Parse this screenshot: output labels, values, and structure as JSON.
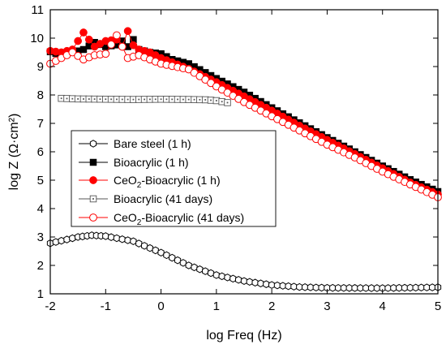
{
  "chart_data": {
    "type": "scatter",
    "xlabel": "log Freq (Hz)",
    "ylabel": "log Z (Ω·cm²)",
    "xlim": [
      -2,
      5
    ],
    "ylim": [
      1,
      11
    ],
    "xticks": [
      "-2",
      "-1",
      "0",
      "1",
      "2",
      "3",
      "4",
      "5"
    ],
    "yticks": [
      "1",
      "2",
      "3",
      "4",
      "5",
      "6",
      "7",
      "8",
      "9",
      "10",
      "11"
    ],
    "grid": false,
    "legend": "left-middle",
    "series": [
      {
        "name": "Bare steel (1 h)",
        "marker": "hexagon-open",
        "color": "#000000",
        "x": [
          -2.0,
          -1.5,
          -1.25,
          -1.0,
          -0.5,
          0.0,
          0.5,
          1.0,
          1.5,
          2.0,
          2.5,
          3.0,
          4.0,
          5.0
        ],
        "y": [
          2.78,
          3.0,
          3.06,
          3.03,
          2.85,
          2.45,
          2.0,
          1.66,
          1.45,
          1.31,
          1.24,
          1.21,
          1.2,
          1.23
        ]
      },
      {
        "name": "Bioacrylic (1 h)",
        "marker": "square-filled",
        "color": "#000000",
        "x": [
          -2.0,
          -1.8,
          -1.6,
          -1.4,
          -1.2,
          -1.0,
          -0.8,
          -0.7,
          -0.6,
          -0.5,
          -0.4,
          -0.2,
          0.0,
          0.2,
          0.5,
          1.0,
          1.5,
          2.0,
          2.5,
          3.0,
          3.5,
          4.0,
          4.5,
          5.0
        ],
        "y": [
          9.52,
          9.4,
          9.5,
          9.6,
          9.85,
          9.7,
          9.76,
          9.9,
          9.7,
          9.95,
          9.6,
          9.5,
          9.45,
          9.25,
          9.1,
          8.58,
          8.1,
          7.55,
          7.02,
          6.5,
          6.0,
          5.5,
          5.02,
          4.6
        ]
      },
      {
        "name": "CeO2-Bioacrylic (1 h)",
        "display_name": "CeO₂-Bioacrylic (1 h)",
        "marker": "circle-filled",
        "color": "#ff0000",
        "x": [
          -2.0,
          -1.8,
          -1.6,
          -1.4,
          -1.2,
          -1.0,
          -0.8,
          -0.7,
          -0.6,
          -0.5,
          -0.4,
          -0.2,
          0.0,
          0.2,
          0.5,
          1.0,
          1.5,
          2.0,
          2.5,
          3.0,
          3.5,
          4.0,
          4.5,
          5.0
        ],
        "y": [
          9.55,
          9.5,
          9.6,
          10.2,
          9.7,
          9.9,
          9.95,
          9.7,
          10.25,
          9.75,
          9.6,
          9.5,
          9.3,
          9.15,
          8.92,
          8.45,
          7.95,
          7.45,
          6.92,
          6.42,
          5.92,
          5.42,
          4.92,
          4.5
        ]
      },
      {
        "name": "Bioacrylic (41 days)",
        "marker": "square-dot",
        "color": "#555555",
        "x": [
          -1.8,
          -1.5,
          -1.0,
          -0.5,
          0.0,
          0.5,
          0.8,
          1.0,
          1.2
        ],
        "y": [
          7.88,
          7.86,
          7.85,
          7.84,
          7.85,
          7.84,
          7.83,
          7.8,
          7.73
        ]
      },
      {
        "name": "CeO2-Bioacrylic (41 days)",
        "display_name": "CeO₂-Bioacrylic (41 days)",
        "marker": "circle-open",
        "color": "#ff0000",
        "x": [
          -2.0,
          -1.8,
          -1.6,
          -1.4,
          -1.2,
          -1.0,
          -0.8,
          -0.6,
          -0.4,
          -0.2,
          0.0,
          0.5,
          1.0,
          1.5,
          2.0,
          2.5,
          3.0,
          3.5,
          4.0,
          4.5,
          5.0
        ],
        "y": [
          9.1,
          9.3,
          9.5,
          9.25,
          9.4,
          9.45,
          10.1,
          9.3,
          9.4,
          9.25,
          9.1,
          8.9,
          8.3,
          7.75,
          7.25,
          6.75,
          6.25,
          5.8,
          5.3,
          4.85,
          4.4
        ]
      }
    ]
  }
}
